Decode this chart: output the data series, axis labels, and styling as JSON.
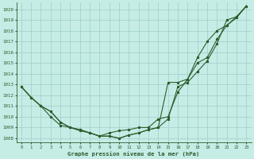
{
  "background_color": "#c6ece6",
  "grid_color": "#9dcfc8",
  "line_color": "#2d5e2d",
  "xlabel": "Graphe pression niveau de la mer (hPa)",
  "ylim": [
    1007.6,
    1020.6
  ],
  "xlim": [
    -0.5,
    23.5
  ],
  "yticks": [
    1008,
    1009,
    1010,
    1011,
    1012,
    1013,
    1014,
    1015,
    1016,
    1017,
    1018,
    1019,
    1020
  ],
  "xticks": [
    0,
    1,
    2,
    3,
    4,
    5,
    6,
    7,
    8,
    9,
    10,
    11,
    12,
    13,
    14,
    15,
    16,
    17,
    18,
    19,
    20,
    21,
    22,
    23
  ],
  "series_steep": [
    1012.8,
    1011.8,
    1011.0,
    1010.5,
    1009.5,
    1009.0,
    1008.8,
    1008.5,
    1008.2,
    1008.2,
    1008.0,
    1008.3,
    1008.5,
    1008.8,
    1009.0,
    1013.2,
    1013.2,
    1013.5,
    1015.5,
    1017.0,
    1018.0,
    1018.5,
    1019.2,
    1020.3
  ],
  "series_moderate": [
    1012.8,
    1011.8,
    1011.0,
    1010.5,
    1009.5,
    1009.0,
    1008.8,
    1008.5,
    1008.2,
    1008.2,
    1008.0,
    1008.3,
    1008.5,
    1008.8,
    1009.0,
    1009.8,
    1012.8,
    1013.2,
    1014.2,
    1015.2,
    1016.8,
    1019.0,
    1019.3,
    1020.3
  ],
  "series_flat": [
    1012.8,
    1011.8,
    1011.0,
    1010.0,
    1009.2,
    1009.0,
    1008.7,
    1008.5,
    1008.2,
    1008.5,
    1008.7,
    1008.8,
    1009.0,
    1009.0,
    1009.8,
    1010.0,
    1012.3,
    1013.5,
    1015.0,
    1015.5,
    1017.2,
    1018.5,
    1019.3,
    1020.3
  ]
}
